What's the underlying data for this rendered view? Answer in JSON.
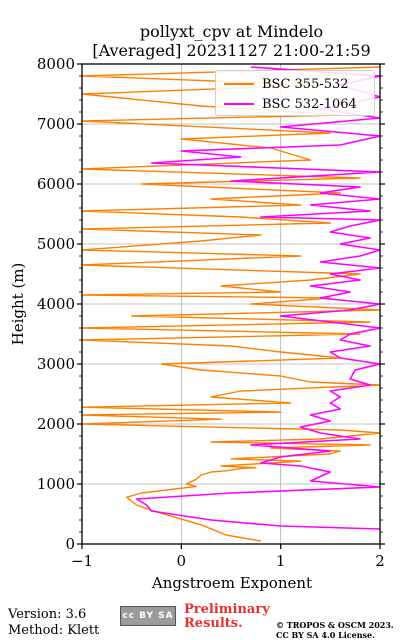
{
  "figure": {
    "title_line1": "pollyxt_cpv at Mindelo",
    "title_line2": "[Averaged] 20231127 21:00-21:59"
  },
  "footer": {
    "version": "Version: 3.6",
    "method": "Method: Klett",
    "cc_badge": "cc BY SA",
    "preliminary_line1": "Preliminary",
    "preliminary_line2": "Results.",
    "copyright_line1": "© TROPOS & OSCM 2023.",
    "copyright_line2": "CC BY SA 4.0 License."
  },
  "colors": {
    "bsc_355_532": "#ff8000",
    "bsc_532_1064": "#ff00ff",
    "preliminary": "#e8312f"
  },
  "chart_data": {
    "type": "line",
    "orientation": "vertical-profile",
    "xlabel": "Angstroem Exponent",
    "ylabel": "Height (m)",
    "xlim": [
      -1,
      2
    ],
    "ylim": [
      0,
      8000
    ],
    "xticks": [
      "−1",
      "0",
      "1",
      "2"
    ],
    "yticks": [
      "0",
      "1000",
      "2000",
      "3000",
      "4000",
      "5000",
      "6000",
      "7000",
      "8000"
    ],
    "grid": true,
    "legend_placement": "top-right",
    "series": [
      {
        "name": "BSC 355-532",
        "points": [
          [
            0.8,
            50
          ],
          [
            0.45,
            150
          ],
          [
            0.2,
            320
          ],
          [
            -0.3,
            560
          ],
          [
            -0.45,
            650
          ],
          [
            -0.55,
            780
          ],
          [
            -0.4,
            850
          ],
          [
            0.15,
            960
          ],
          [
            0.05,
            1000
          ],
          [
            0.15,
            1080
          ],
          [
            0.2,
            1150
          ],
          [
            0.3,
            1200
          ],
          [
            0.45,
            1220
          ],
          [
            0.6,
            1260
          ],
          [
            0.75,
            1270
          ],
          [
            0.4,
            1300
          ],
          [
            1.2,
            1380
          ],
          [
            0.5,
            1420
          ],
          [
            1.5,
            1500
          ],
          [
            1.6,
            1550
          ],
          [
            0.9,
            1600
          ],
          [
            1.9,
            1650
          ],
          [
            0.3,
            1700
          ],
          [
            1.4,
            1750
          ],
          [
            2.0,
            1850
          ],
          [
            1.6,
            1900
          ],
          [
            -1.0,
            2000
          ],
          [
            0.4,
            2080
          ],
          [
            -1.0,
            2150
          ],
          [
            1.0,
            2200
          ],
          [
            -1.0,
            2280
          ],
          [
            1.1,
            2350
          ],
          [
            0.3,
            2450
          ],
          [
            0.6,
            2550
          ],
          [
            2.0,
            2650
          ],
          [
            1.3,
            2700
          ],
          [
            1.0,
            2800
          ],
          [
            0.2,
            2900
          ],
          [
            -0.2,
            3000
          ],
          [
            1.6,
            3100
          ],
          [
            1.0,
            3200
          ],
          [
            0.5,
            3300
          ],
          [
            -1.0,
            3400
          ],
          [
            1.8,
            3500
          ],
          [
            -1.0,
            3600
          ],
          [
            1.9,
            3700
          ],
          [
            -0.5,
            3800
          ],
          [
            2.0,
            3900
          ],
          [
            0.7,
            4000
          ],
          [
            1.5,
            4100
          ],
          [
            -1.0,
            4150
          ],
          [
            1.0,
            4200
          ],
          [
            0.4,
            4300
          ],
          [
            1.3,
            4400
          ],
          [
            1.8,
            4500
          ],
          [
            -1.0,
            4650
          ],
          [
            1.2,
            4800
          ],
          [
            -1.0,
            4900
          ],
          [
            0.2,
            5050
          ],
          [
            0.8,
            5150
          ],
          [
            -1.0,
            5250
          ],
          [
            1.5,
            5350
          ],
          [
            0.6,
            5450
          ],
          [
            -1.0,
            5550
          ],
          [
            1.2,
            5650
          ],
          [
            0.3,
            5750
          ],
          [
            1.6,
            5850
          ],
          [
            -0.4,
            6000
          ],
          [
            1.8,
            6100
          ],
          [
            -1.0,
            6250
          ],
          [
            1.3,
            6400
          ],
          [
            0.9,
            6600
          ],
          [
            0.0,
            6750
          ],
          [
            1.5,
            6850
          ],
          [
            -1.0,
            7050
          ],
          [
            1.6,
            7150
          ],
          [
            0.2,
            7300
          ],
          [
            -1.0,
            7500
          ],
          [
            1.4,
            7650
          ],
          [
            -1.0,
            7800
          ],
          [
            2.0,
            7950
          ]
        ]
      },
      {
        "name": "BSC 532-1064",
        "points": [
          [
            2.0,
            250
          ],
          [
            1.0,
            300
          ],
          [
            0.3,
            400
          ],
          [
            -0.3,
            550
          ],
          [
            -0.35,
            650
          ],
          [
            -0.45,
            750
          ],
          [
            0.5,
            850
          ],
          [
            2.0,
            950
          ],
          [
            1.3,
            1050
          ],
          [
            1.5,
            1200
          ],
          [
            1.2,
            1300
          ],
          [
            0.8,
            1350
          ],
          [
            1.0,
            1450
          ],
          [
            1.5,
            1550
          ],
          [
            0.7,
            1650
          ],
          [
            1.8,
            1750
          ],
          [
            1.4,
            1850
          ],
          [
            1.2,
            1950
          ],
          [
            1.5,
            2050
          ],
          [
            1.3,
            2150
          ],
          [
            1.6,
            2250
          ],
          [
            1.5,
            2350
          ],
          [
            1.6,
            2450
          ],
          [
            1.5,
            2550
          ],
          [
            1.9,
            2650
          ],
          [
            1.7,
            2750
          ],
          [
            1.75,
            2900
          ],
          [
            2.0,
            3000
          ],
          [
            1.6,
            3100
          ],
          [
            1.5,
            3200
          ],
          [
            1.9,
            3300
          ],
          [
            1.6,
            3400
          ],
          [
            1.7,
            3500
          ],
          [
            2.0,
            3600
          ],
          [
            1.5,
            3700
          ],
          [
            1.0,
            3800
          ],
          [
            1.7,
            3900
          ],
          [
            2.0,
            4000
          ],
          [
            1.4,
            4100
          ],
          [
            1.7,
            4200
          ],
          [
            1.3,
            4300
          ],
          [
            1.8,
            4400
          ],
          [
            1.5,
            4500
          ],
          [
            2.0,
            4600
          ],
          [
            1.4,
            4700
          ],
          [
            1.8,
            4800
          ],
          [
            2.0,
            4900
          ],
          [
            1.6,
            5000
          ],
          [
            1.9,
            5100
          ],
          [
            1.5,
            5200
          ],
          [
            1.7,
            5300
          ],
          [
            2.0,
            5400
          ],
          [
            0.8,
            5450
          ],
          [
            1.9,
            5550
          ],
          [
            1.3,
            5650
          ],
          [
            2.0,
            5750
          ],
          [
            1.4,
            5850
          ],
          [
            1.8,
            5950
          ],
          [
            0.5,
            6050
          ],
          [
            2.0,
            6200
          ],
          [
            -0.3,
            6350
          ],
          [
            0.6,
            6450
          ],
          [
            0.0,
            6550
          ],
          [
            1.6,
            6650
          ],
          [
            2.0,
            6800
          ],
          [
            1.0,
            6950
          ],
          [
            2.0,
            7100
          ],
          [
            1.4,
            7250
          ],
          [
            2.0,
            7450
          ],
          [
            1.6,
            7650
          ],
          [
            2.0,
            7800
          ],
          [
            0.7,
            7950
          ]
        ]
      }
    ]
  }
}
